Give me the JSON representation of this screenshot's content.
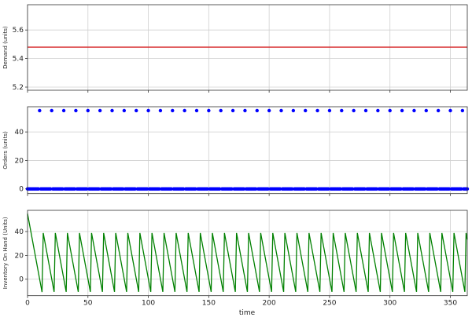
{
  "chart_data": [
    {
      "type": "line",
      "ylabel": "Demand (units)",
      "xlim": [
        0,
        364
      ],
      "ylim": [
        5.178,
        5.777
      ],
      "yticks": [
        5.2,
        5.4,
        5.6
      ],
      "xticks": [
        0,
        50,
        100,
        150,
        200,
        250,
        300,
        350
      ],
      "grid": true,
      "series": [
        {
          "x": [
            0,
            364
          ],
          "y": [
            5.48,
            5.48
          ],
          "color": "#d62728"
        }
      ]
    },
    {
      "type": "scatter",
      "ylabel": "Orders (units)",
      "xlim": [
        0,
        364
      ],
      "ylim": [
        -3.3,
        57.7
      ],
      "yticks": [
        0,
        20,
        40
      ],
      "xticks": [
        0,
        50,
        100,
        150,
        200,
        250,
        300,
        350
      ],
      "grid": true,
      "color": "#0000ff",
      "order_quantity": 55,
      "order_days": [
        10,
        20,
        30,
        40,
        50,
        60,
        70,
        80,
        90,
        100,
        110,
        120,
        130,
        140,
        150,
        160,
        170,
        180,
        190,
        200,
        210,
        220,
        230,
        240,
        250,
        260,
        270,
        280,
        290,
        300,
        310,
        320,
        330,
        340,
        350,
        360
      ],
      "other_days_value": 0
    },
    {
      "type": "line",
      "ylabel": "Inventory On Hand (Units)",
      "xlabel": "time",
      "xlim": [
        0,
        364
      ],
      "ylim": [
        -13.8,
        57.8
      ],
      "yticks": [
        0,
        20,
        40
      ],
      "xticks": [
        0,
        50,
        100,
        150,
        200,
        250,
        300,
        350
      ],
      "grid": true,
      "color": "#008000",
      "series": [
        {
          "x": [
            0,
            12,
            13,
            22,
            23,
            32,
            33,
            42,
            43,
            52,
            53,
            62,
            63,
            72,
            73,
            82,
            83,
            92,
            93,
            102,
            103,
            112,
            113,
            122,
            123,
            132,
            133,
            142,
            143,
            152,
            153,
            162,
            163,
            172,
            173,
            182,
            183,
            192,
            193,
            202,
            203,
            212,
            213,
            222,
            223,
            232,
            233,
            242,
            243,
            252,
            253,
            262,
            263,
            272,
            273,
            282,
            283,
            292,
            293,
            302,
            303,
            312,
            313,
            322,
            323,
            332,
            333,
            342,
            343,
            352,
            353,
            362,
            363,
            364
          ],
          "y": [
            55,
            -10.8,
            38.8,
            -10.6,
            38.8,
            -10.6,
            38.8,
            -10.6,
            38.8,
            -10.6,
            38.8,
            -10.6,
            38.8,
            -10.6,
            38.8,
            -10.6,
            38.8,
            -10.6,
            38.8,
            -10.6,
            38.8,
            -10.6,
            38.8,
            -10.6,
            38.8,
            -10.6,
            38.8,
            -10.6,
            38.8,
            -10.6,
            38.8,
            -10.6,
            38.8,
            -10.6,
            38.8,
            -10.6,
            38.8,
            -10.6,
            38.8,
            -10.6,
            38.8,
            -10.6,
            38.8,
            -10.6,
            38.8,
            -10.6,
            38.8,
            -10.6,
            38.8,
            -10.6,
            38.8,
            -10.6,
            38.8,
            -10.6,
            38.8,
            -10.6,
            38.8,
            -10.6,
            38.8,
            -10.6,
            38.8,
            -10.6,
            38.8,
            -10.6,
            38.8,
            -10.6,
            38.8,
            -10.6,
            38.8,
            -10.6,
            38.8,
            -10.6,
            38.8,
            33.3
          ]
        }
      ]
    }
  ]
}
